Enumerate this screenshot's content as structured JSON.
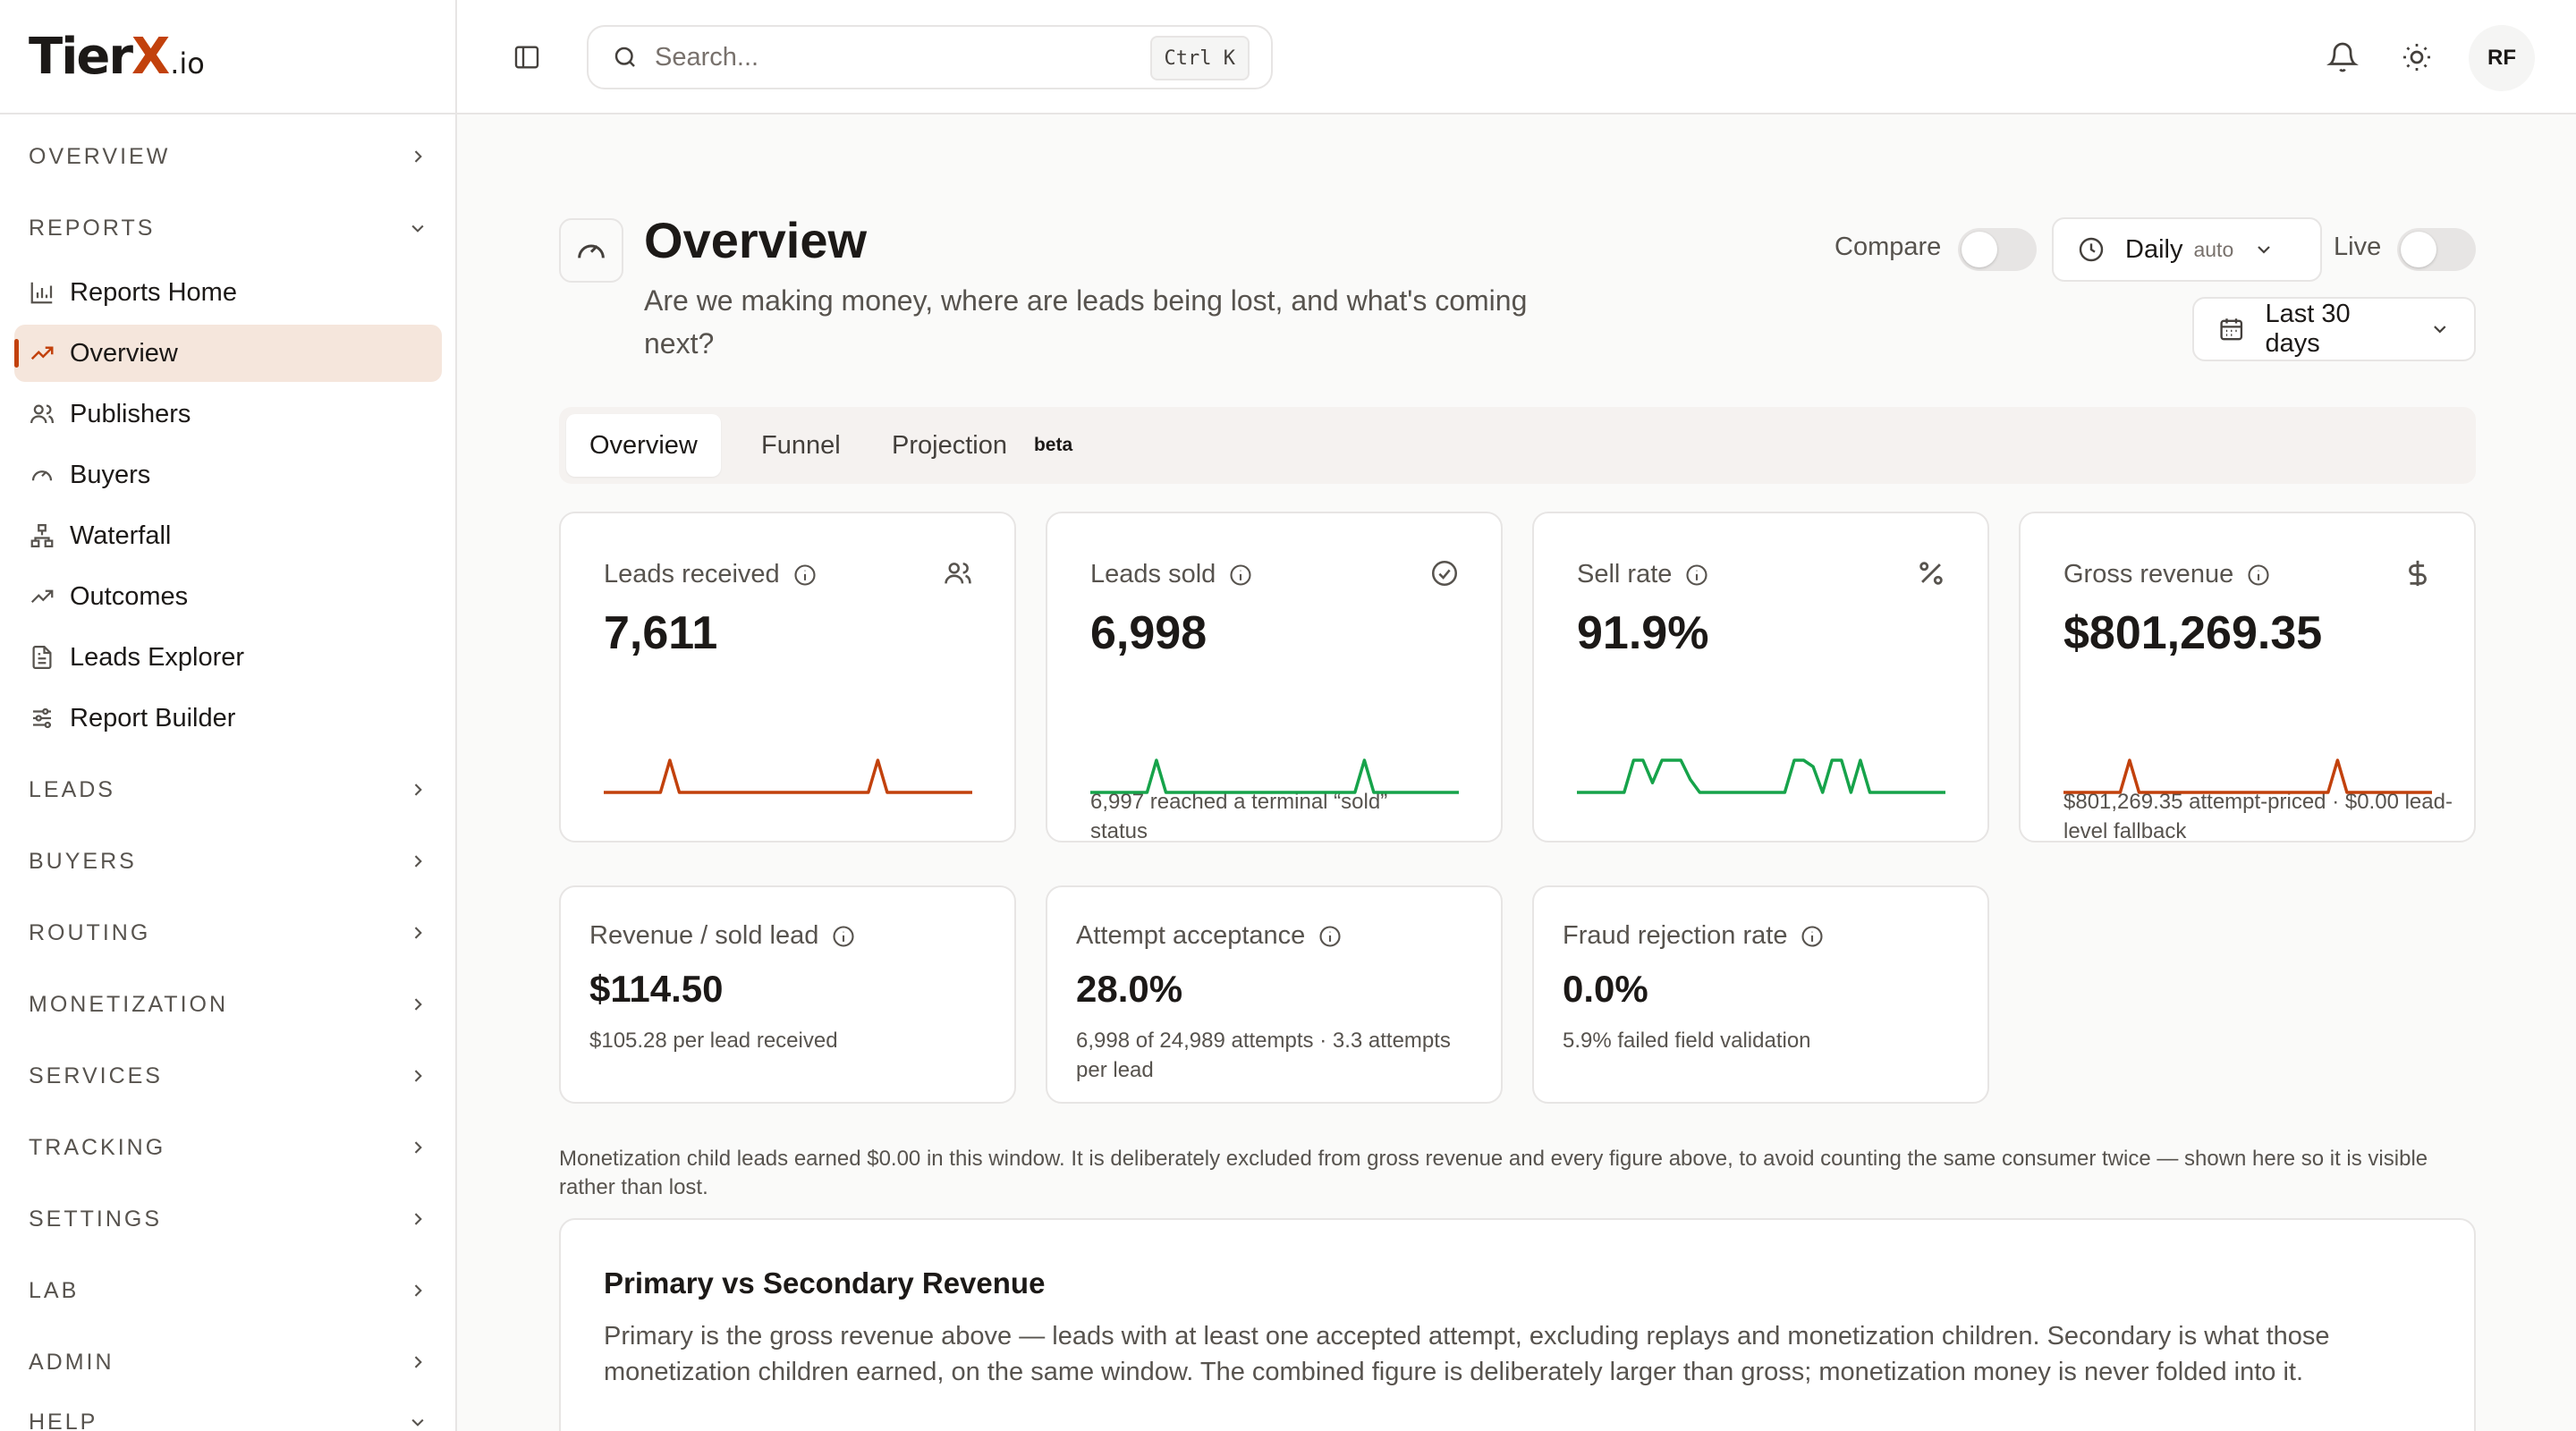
{
  "brand": {
    "name_a": "Tier",
    "name_x": "X",
    "name_io": ".io"
  },
  "colors": {
    "accent": "#c2410c",
    "success": "#16a34a",
    "active_bg": "#f5e6dc"
  },
  "sidebar": {
    "sections": {
      "overview": "OVERVIEW",
      "reports": "REPORTS",
      "leads": "LEADS",
      "buyers": "BUYERS",
      "routing": "ROUTING",
      "monetization": "MONETIZATION",
      "services": "SERVICES",
      "tracking": "TRACKING",
      "settings": "SETTINGS",
      "lab": "LAB",
      "admin": "ADMIN",
      "help": "HELP"
    },
    "reports_items": [
      {
        "label": "Reports Home",
        "icon": "bar-chart-icon"
      },
      {
        "label": "Overview",
        "icon": "trending-up-icon",
        "active": true
      },
      {
        "label": "Publishers",
        "icon": "users-icon"
      },
      {
        "label": "Buyers",
        "icon": "gauge-icon"
      },
      {
        "label": "Waterfall",
        "icon": "network-icon"
      },
      {
        "label": "Outcomes",
        "icon": "trending-up-icon"
      },
      {
        "label": "Leads Explorer",
        "icon": "file-icon"
      },
      {
        "label": "Report Builder",
        "icon": "sliders-icon"
      }
    ]
  },
  "topbar": {
    "search_placeholder": "Search...",
    "search_shortcut": "Ctrl K",
    "avatar_initials": "RF"
  },
  "page": {
    "title": "Overview",
    "subtitle": "Are we making money, where are leads being lost, and what's coming next?",
    "compare_label": "Compare",
    "interval_label": "Daily",
    "interval_sub": "auto",
    "live_label": "Live",
    "range_label": "Last 30 days",
    "compare_on": false,
    "live_on": false
  },
  "tabs": [
    {
      "label": "Overview",
      "active": true
    },
    {
      "label": "Funnel"
    },
    {
      "label": "Projection",
      "badge": "beta"
    }
  ],
  "kpis": [
    {
      "title": "Leads received",
      "value": "7,611",
      "desc": "",
      "icon": "users-icon",
      "trend": [
        0,
        0,
        0,
        0,
        0,
        0,
        0,
        1,
        0,
        0,
        0,
        0,
        0,
        0,
        0,
        0,
        0,
        0,
        0,
        0,
        0,
        0,
        0,
        0,
        0,
        0,
        0,
        0,
        0,
        1,
        0,
        0,
        0,
        0,
        0,
        0,
        0,
        0,
        0,
        0
      ],
      "color": "#c2410c"
    },
    {
      "title": "Leads sold",
      "value": "6,998",
      "desc": "6,997 reached a terminal “sold” status",
      "icon": "check-circle-icon",
      "trend": [
        0,
        0,
        0,
        0,
        0,
        0,
        0,
        1,
        0,
        0,
        0,
        0,
        0,
        0,
        0,
        0,
        0,
        0,
        0,
        0,
        0,
        0,
        0,
        0,
        0,
        0,
        0,
        0,
        0,
        1,
        0,
        0,
        0,
        0,
        0,
        0,
        0,
        0,
        0,
        0
      ],
      "color": "#16a34a"
    },
    {
      "title": "Sell rate",
      "value": "91.9%",
      "desc": "",
      "icon": "percent-icon",
      "trend": [
        0,
        0,
        0,
        0,
        0,
        0,
        1,
        1,
        0.3,
        1,
        1,
        1,
        0.4,
        0,
        0,
        0,
        0,
        0,
        0,
        0,
        0,
        0,
        0,
        1,
        1,
        0.8,
        0,
        1,
        1,
        0,
        1,
        0,
        0,
        0,
        0,
        0,
        0,
        0,
        0,
        0
      ],
      "color": "#16a34a"
    },
    {
      "title": "Gross revenue",
      "value": "$801,269.35",
      "desc": "$801,269.35 attempt-priced · $0.00 lead-level fallback",
      "icon": "dollar-icon",
      "trend": [
        0,
        0,
        0,
        0,
        0,
        0,
        0,
        1,
        0,
        0,
        0,
        0,
        0,
        0,
        0,
        0,
        0,
        0,
        0,
        0,
        0,
        0,
        0,
        0,
        0,
        0,
        0,
        0,
        0,
        1,
        0,
        0,
        0,
        0,
        0,
        0,
        0,
        0,
        0,
        0
      ],
      "color": "#c2410c"
    }
  ],
  "secondary_kpis": [
    {
      "title": "Revenue / sold lead",
      "value": "$114.50",
      "desc": "$105.28 per lead received"
    },
    {
      "title": "Attempt acceptance",
      "value": "28.0%",
      "desc": "6,998 of 24,989 attempts · 3.3 attempts per lead"
    },
    {
      "title": "Fraud rejection rate",
      "value": "0.0%",
      "desc": "5.9% failed field validation"
    }
  ],
  "note": "Monetization child leads earned $0.00 in this window. It is deliberately excluded from gross revenue and every figure above, to avoid counting the same consumer twice — shown here so it is visible rather than lost.",
  "panel": {
    "title": "Primary vs Secondary Revenue",
    "text": "Primary is the gross revenue above — leads with at least one accepted attempt, excluding replays and monetization children. Secondary is what those monetization children earned, on the same window. The combined figure is deliberately larger than gross; monetization money is never folded into it."
  }
}
